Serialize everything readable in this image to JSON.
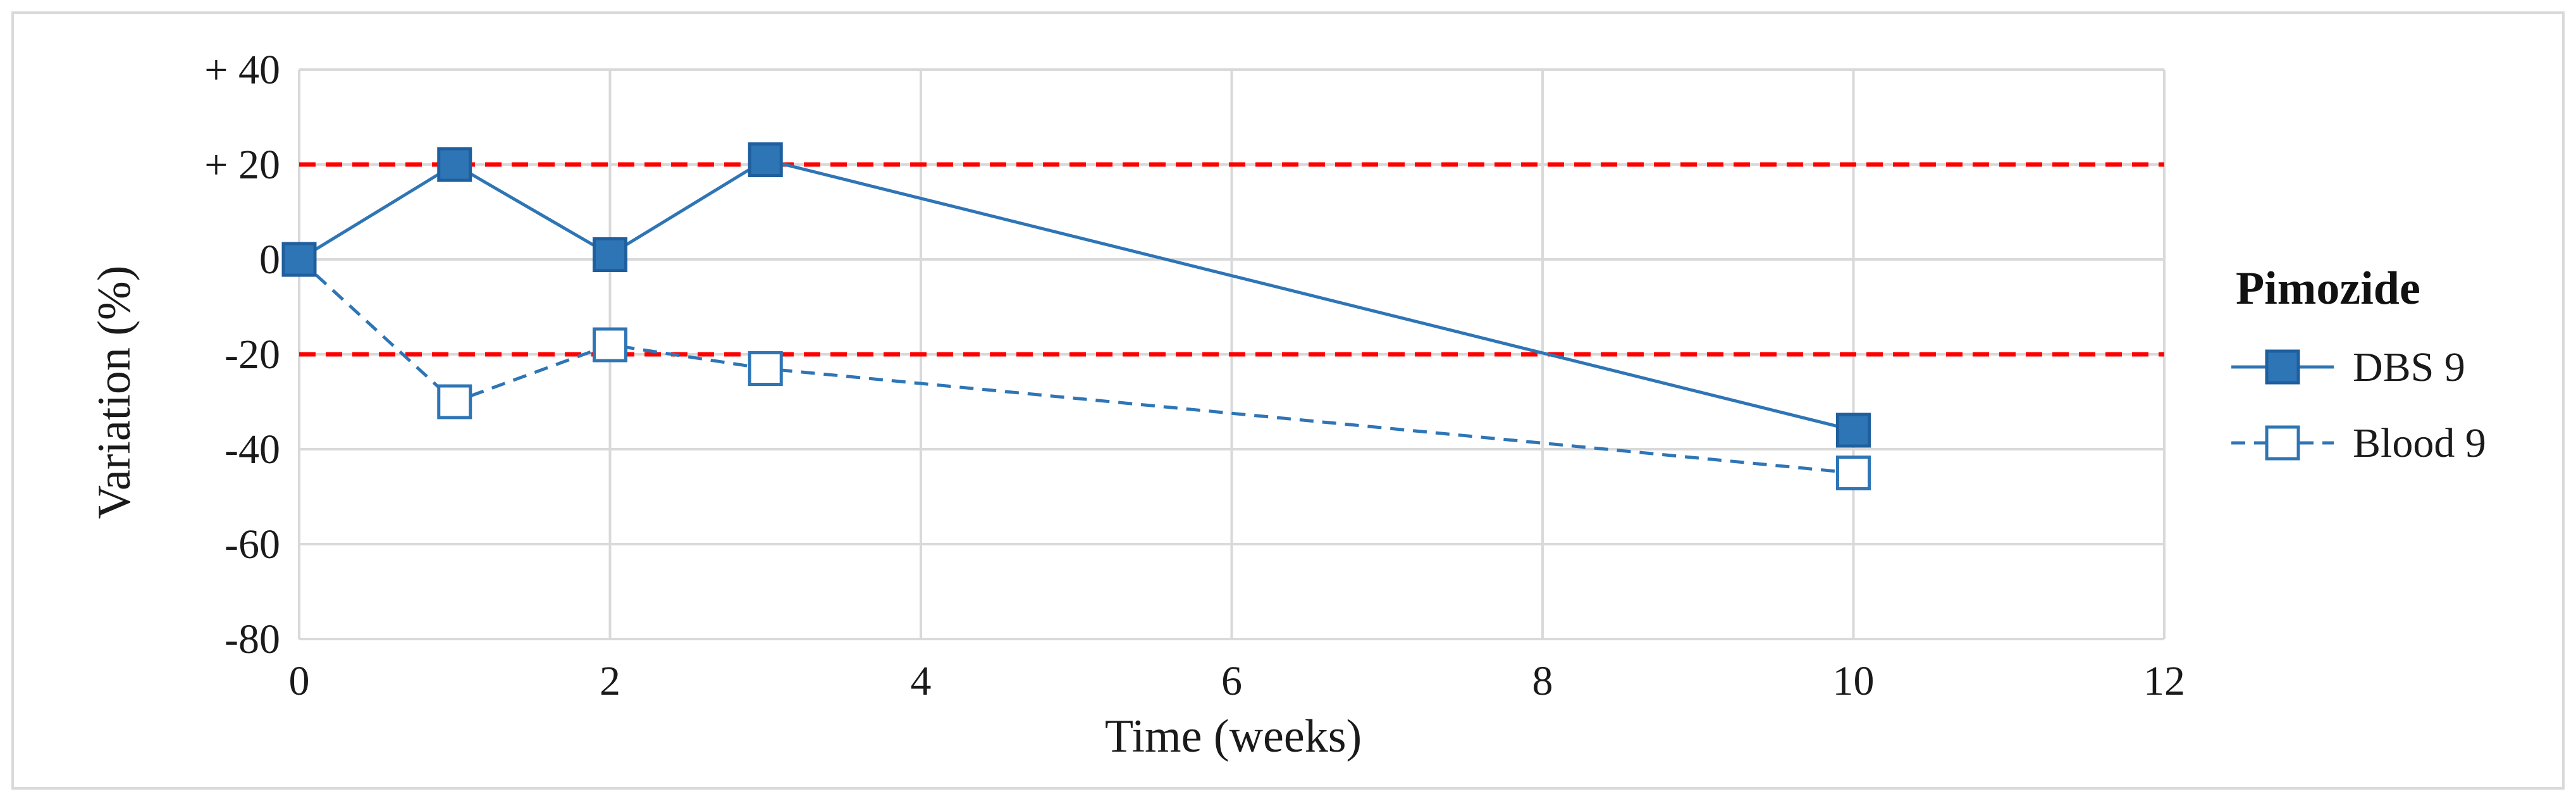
{
  "chart_data": {
    "type": "line",
    "xlabel": "Time (weeks)",
    "ylabel": "Variation (%)",
    "xlim": [
      0,
      12
    ],
    "ylim": [
      -80,
      40
    ],
    "x_ticks": [
      0,
      2,
      4,
      6,
      8,
      10,
      12
    ],
    "y_ticks": [
      40,
      20,
      0,
      -20,
      -40,
      -60,
      -80
    ],
    "y_tick_labels": [
      "+ 40",
      "+ 20",
      "0",
      "-20",
      "-40",
      "-60",
      "-80"
    ],
    "grid": true,
    "reference_lines": [
      {
        "y": 20,
        "color": "#ff0000",
        "style": "dashed"
      },
      {
        "y": -20,
        "color": "#ff0000",
        "style": "dashed"
      }
    ],
    "legend": {
      "title": "Pimozide",
      "position": "right"
    },
    "series": [
      {
        "name": "DBS 9",
        "x": [
          0,
          1,
          2,
          3,
          10
        ],
        "y": [
          0,
          20,
          1,
          21,
          -36
        ],
        "color": "#2e75b6",
        "line_style": "solid",
        "marker": "filled-square"
      },
      {
        "name": "Blood 9",
        "x": [
          0,
          1,
          2,
          3,
          10
        ],
        "y": [
          0,
          -30,
          -18,
          -23,
          -45
        ],
        "color": "#2e75b6",
        "line_style": "dashed",
        "marker": "open-square"
      }
    ]
  }
}
